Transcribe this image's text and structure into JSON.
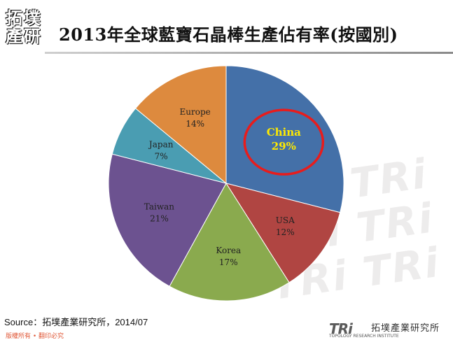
{
  "header": {
    "logo_chars": [
      "拓",
      "墣",
      "產",
      "研"
    ],
    "title": "2013年全球藍寶石晶棒生產佔有率(按國別)"
  },
  "chart_data": {
    "type": "pie",
    "title": "2013年全球藍寶石晶棒生產佔有率(按國別)",
    "slices": [
      {
        "label": "China",
        "value": 29,
        "display": "29%",
        "color": "#4470a8"
      },
      {
        "label": "USA",
        "value": 12,
        "display": "12%",
        "color": "#b04542"
      },
      {
        "label": "Korea",
        "value": 17,
        "display": "17%",
        "color": "#8aaa4e"
      },
      {
        "label": "Taiwan",
        "value": 21,
        "display": "21%",
        "color": "#6c5290"
      },
      {
        "label": "Japan",
        "value": 7,
        "display": "7%",
        "color": "#4a9db2"
      },
      {
        "label": "Europe",
        "value": 14,
        "display": "14%",
        "color": "#dd8a3e"
      }
    ],
    "highlight": {
      "label": "China",
      "color": "#e81c1c"
    }
  },
  "footer": {
    "source": "Source：拓墣產業研究所，2014/07",
    "copyright": "版權所有 • 翻印必究",
    "brand_mark": "TRi",
    "brand_cn": "拓墣產業研究所",
    "brand_en": "TOPOLOGY RESEARCH INSTITUTE"
  },
  "watermark": "TRi TRi\nTRi TRi\nTRi TRi"
}
